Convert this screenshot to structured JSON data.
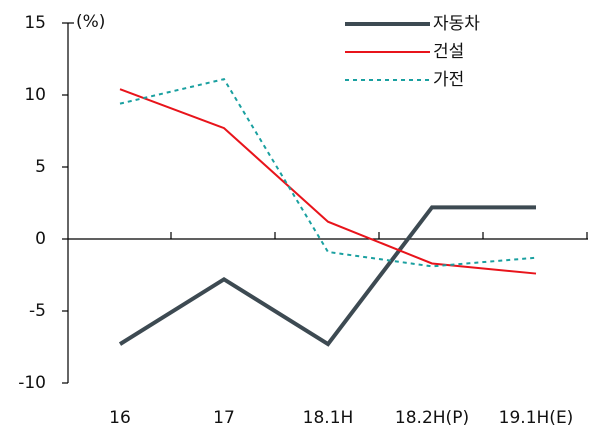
{
  "chart_data": {
    "type": "line",
    "y_unit": "(%)",
    "categories": [
      "16",
      "17",
      "18.1H",
      "18.2H(P)",
      "19.1H(E)"
    ],
    "series": [
      {
        "name": "자동차",
        "color": "#3d4a52",
        "style": "solid",
        "values": [
          -7.3,
          -2.8,
          -7.3,
          2.2,
          2.2
        ]
      },
      {
        "name": "건설",
        "color": "#e8141b",
        "style": "solid",
        "values": [
          10.4,
          7.7,
          1.2,
          -1.7,
          -2.4
        ]
      },
      {
        "name": "가전",
        "color": "#1aa0a0",
        "style": "dotted",
        "values": [
          9.4,
          11.1,
          -0.9,
          -1.9,
          -1.3
        ]
      }
    ],
    "ylim": [
      -10,
      15
    ],
    "yticks": [
      -10,
      -5,
      0,
      5,
      10,
      15
    ],
    "legend": "upper right"
  }
}
